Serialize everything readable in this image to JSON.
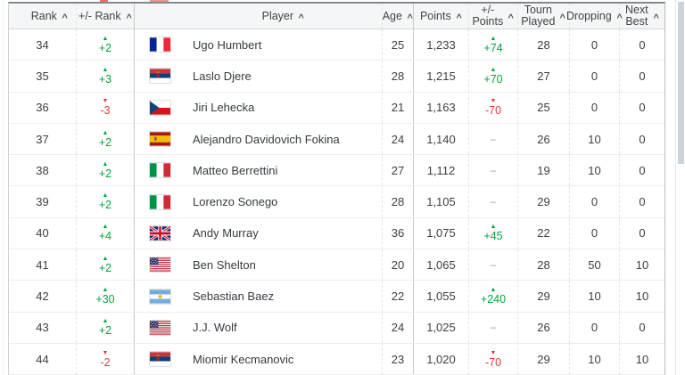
{
  "colors": {
    "green": "#00a63f",
    "red": "#e23a3a",
    "header_bg": "#f5f6f7",
    "text": "#3c4046"
  },
  "icons": {
    "sort_caret": "∧",
    "up_triangle": "▲",
    "down_triangle": "▼",
    "no_change_dash": "–"
  },
  "table": {
    "columns": [
      {
        "id": "rank",
        "lines": [
          "Rank"
        ]
      },
      {
        "id": "rank-change",
        "lines": [
          "+/- Rank"
        ]
      },
      {
        "id": "player",
        "lines": [
          "Player"
        ]
      },
      {
        "id": "age",
        "lines": [
          "Age"
        ]
      },
      {
        "id": "points",
        "lines": [
          "Points"
        ]
      },
      {
        "id": "points-change",
        "lines": [
          "+/-",
          "Points"
        ]
      },
      {
        "id": "tourn-played",
        "lines": [
          "Tourn",
          "Played"
        ]
      },
      {
        "id": "dropping",
        "lines": [
          "Dropping"
        ]
      },
      {
        "id": "next-best",
        "lines": [
          "Next",
          "Best"
        ]
      }
    ],
    "rows": [
      {
        "rank": "34",
        "rank_change": {
          "dir": "up",
          "value": "+2"
        },
        "flag": "fr",
        "country": "France",
        "player": "Ugo Humbert",
        "age": "25",
        "points": "1,233",
        "points_change": {
          "dir": "up",
          "value": "+74"
        },
        "tourn_played": "28",
        "dropping": "0",
        "next_best": "0"
      },
      {
        "rank": "35",
        "rank_change": {
          "dir": "up",
          "value": "+3"
        },
        "flag": "rs",
        "country": "Serbia",
        "player": "Laslo Djere",
        "age": "28",
        "points": "1,215",
        "points_change": {
          "dir": "up",
          "value": "+70"
        },
        "tourn_played": "27",
        "dropping": "0",
        "next_best": "0"
      },
      {
        "rank": "36",
        "rank_change": {
          "dir": "down",
          "value": "-3"
        },
        "flag": "cz",
        "country": "Czech Republic",
        "player": "Jiri Lehecka",
        "age": "21",
        "points": "1,163",
        "points_change": {
          "dir": "down",
          "value": "-70"
        },
        "tourn_played": "25",
        "dropping": "0",
        "next_best": "0"
      },
      {
        "rank": "37",
        "rank_change": {
          "dir": "up",
          "value": "+2"
        },
        "flag": "es",
        "country": "Spain",
        "player": "Alejandro Davidovich Fokina",
        "age": "24",
        "points": "1,140",
        "points_change": {
          "dir": "none",
          "value": "–"
        },
        "tourn_played": "26",
        "dropping": "10",
        "next_best": "0"
      },
      {
        "rank": "38",
        "rank_change": {
          "dir": "up",
          "value": "+2"
        },
        "flag": "it",
        "country": "Italy",
        "player": "Matteo Berrettini",
        "age": "27",
        "points": "1,112",
        "points_change": {
          "dir": "none",
          "value": "–"
        },
        "tourn_played": "19",
        "dropping": "10",
        "next_best": "0"
      },
      {
        "rank": "39",
        "rank_change": {
          "dir": "up",
          "value": "+2"
        },
        "flag": "it",
        "country": "Italy",
        "player": "Lorenzo Sonego",
        "age": "28",
        "points": "1,105",
        "points_change": {
          "dir": "none",
          "value": "–"
        },
        "tourn_played": "29",
        "dropping": "0",
        "next_best": "0"
      },
      {
        "rank": "40",
        "rank_change": {
          "dir": "up",
          "value": "+4"
        },
        "flag": "gb",
        "country": "United Kingdom",
        "player": "Andy Murray",
        "age": "36",
        "points": "1,075",
        "points_change": {
          "dir": "up",
          "value": "+45"
        },
        "tourn_played": "22",
        "dropping": "0",
        "next_best": "0"
      },
      {
        "rank": "41",
        "rank_change": {
          "dir": "up",
          "value": "+2"
        },
        "flag": "us",
        "country": "United States",
        "player": "Ben Shelton",
        "age": "20",
        "points": "1,065",
        "points_change": {
          "dir": "none",
          "value": "–"
        },
        "tourn_played": "28",
        "dropping": "50",
        "next_best": "10"
      },
      {
        "rank": "42",
        "rank_change": {
          "dir": "up",
          "value": "+30"
        },
        "flag": "ar",
        "country": "Argentina",
        "player": "Sebastian Baez",
        "age": "22",
        "points": "1,055",
        "points_change": {
          "dir": "up",
          "value": "+240"
        },
        "tourn_played": "29",
        "dropping": "10",
        "next_best": "10"
      },
      {
        "rank": "43",
        "rank_change": {
          "dir": "up",
          "value": "+2"
        },
        "flag": "us",
        "country": "United States",
        "player": "J.J. Wolf",
        "age": "24",
        "points": "1,025",
        "points_change": {
          "dir": "none",
          "value": "–"
        },
        "tourn_played": "26",
        "dropping": "0",
        "next_best": "0"
      },
      {
        "rank": "44",
        "rank_change": {
          "dir": "down",
          "value": "-2"
        },
        "flag": "rs",
        "country": "Serbia",
        "player": "Miomir Kecmanovic",
        "age": "23",
        "points": "1,020",
        "points_change": {
          "dir": "down",
          "value": "-70"
        },
        "tourn_played": "29",
        "dropping": "10",
        "next_best": "10"
      }
    ]
  }
}
